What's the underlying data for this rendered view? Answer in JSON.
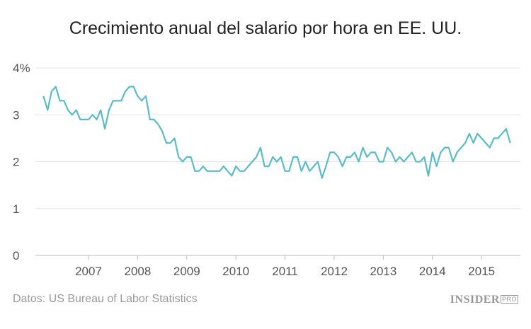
{
  "chart_data": {
    "type": "line",
    "title": "Crecimiento anual del salario por hora en EE. UU.",
    "xlabel": "",
    "ylabel": "",
    "start": "2006-02",
    "frequency": "monthly",
    "xlim": [
      2006.0,
      2015.8
    ],
    "ylim": [
      0,
      4
    ],
    "y_ticks": [
      "0",
      "1",
      "2",
      "3",
      "4%"
    ],
    "x_ticks": [
      "2007",
      "2008",
      "2009",
      "2010",
      "2011",
      "2012",
      "2013",
      "2014",
      "2015"
    ],
    "grid": true,
    "line_color": "#5bbcc8",
    "values": [
      3.4,
      3.1,
      3.5,
      3.6,
      3.3,
      3.3,
      3.1,
      3.0,
      3.1,
      2.9,
      2.9,
      2.9,
      3.0,
      2.9,
      3.1,
      2.7,
      3.1,
      3.3,
      3.3,
      3.3,
      3.5,
      3.6,
      3.6,
      3.4,
      3.3,
      3.4,
      2.9,
      2.9,
      2.8,
      2.65,
      2.4,
      2.4,
      2.5,
      2.1,
      2.0,
      2.1,
      2.1,
      1.8,
      1.8,
      1.9,
      1.8,
      1.8,
      1.8,
      1.8,
      1.9,
      1.8,
      1.7,
      1.9,
      1.8,
      1.8,
      1.9,
      2.0,
      2.1,
      2.3,
      1.9,
      1.9,
      2.1,
      2.0,
      2.1,
      1.8,
      1.8,
      2.1,
      2.1,
      1.8,
      2.0,
      1.8,
      1.9,
      2.0,
      1.65,
      1.9,
      2.2,
      2.2,
      2.1,
      1.9,
      2.1,
      2.1,
      2.2,
      2.0,
      2.3,
      2.1,
      2.2,
      2.2,
      2.0,
      2.0,
      2.3,
      2.2,
      2.0,
      2.1,
      2.0,
      2.1,
      2.2,
      2.0,
      2.0,
      2.1,
      1.7,
      2.2,
      1.9,
      2.2,
      2.3,
      2.3,
      2.0,
      2.2,
      2.3,
      2.4,
      2.6,
      2.4,
      2.6,
      2.5,
      2.4,
      2.3,
      2.5,
      2.5,
      2.6,
      2.7,
      2.4
    ]
  },
  "source": "Datos: US Bureau of Labor Statistics",
  "logo": {
    "main": "INSIDER",
    "sub": "PRO"
  }
}
